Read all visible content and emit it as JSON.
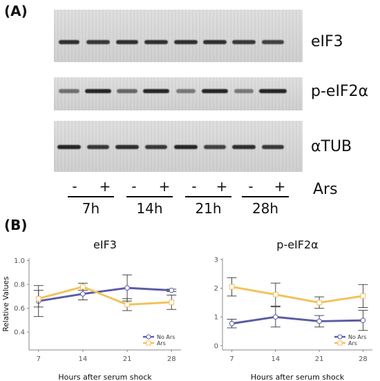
{
  "panel_a_label": "(A)",
  "panel_b_label": "(B)",
  "blots": [
    {
      "label": "eIF3"
    },
    {
      "label": "p-eIF2α"
    },
    {
      "label": "αTUB"
    }
  ],
  "signs": [
    "-",
    "+",
    "-",
    "+",
    "-",
    "+",
    "-",
    "+"
  ],
  "times": [
    "7h",
    "14h",
    "21h",
    "28h"
  ],
  "ars_label": "Ars",
  "chart_data": [
    {
      "type": "line",
      "title": "eIF3",
      "xlabel": "Hours after serum shock",
      "ylabel": "Relative Values",
      "x": [
        7,
        14,
        21,
        28
      ],
      "xlim": [
        5.5,
        29.5
      ],
      "ylim": [
        0.25,
        1.02
      ],
      "yticks": [
        0.4,
        0.6,
        0.8,
        1.0
      ],
      "ytick_labels": [
        "0.4",
        "0.6",
        "0.8",
        "1.0"
      ],
      "grid": false,
      "legend": "bottom-right",
      "series": [
        {
          "name": "No Ars",
          "color": "#5b5ba6",
          "marker": "circle",
          "values": [
            0.66,
            0.72,
            0.77,
            0.75
          ],
          "err": [
            0.13,
            0.05,
            0.11,
            0.01
          ]
        },
        {
          "name": "Ars",
          "color": "#f2c25b",
          "marker": "square",
          "values": [
            0.68,
            0.78,
            0.63,
            0.65
          ],
          "err": [
            0.07,
            0.03,
            0.05,
            0.06
          ]
        }
      ]
    },
    {
      "type": "line",
      "title": "p-eIF2α",
      "xlabel": "Hours after serum shock",
      "ylabel": "",
      "x": [
        7,
        14,
        21,
        28
      ],
      "xlim": [
        5.5,
        29.5
      ],
      "ylim": [
        -0.15,
        3.05
      ],
      "yticks": [
        0,
        1,
        2,
        3
      ],
      "ytick_labels": [
        "0",
        "1",
        "2",
        "3"
      ],
      "grid": false,
      "legend": "bottom-right",
      "series": [
        {
          "name": "No Ars",
          "color": "#5b5ba6",
          "marker": "circle",
          "values": [
            0.77,
            1.0,
            0.85,
            0.88
          ],
          "err": [
            0.15,
            0.35,
            0.2,
            0.35
          ]
        },
        {
          "name": "Ars",
          "color": "#f2c25b",
          "marker": "square",
          "values": [
            2.05,
            1.78,
            1.5,
            1.73
          ],
          "err": [
            0.32,
            0.4,
            0.2,
            0.4
          ]
        }
      ]
    }
  ]
}
